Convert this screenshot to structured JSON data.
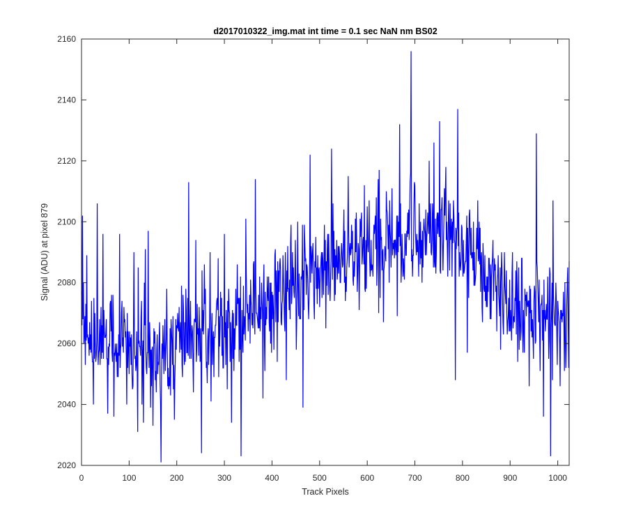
{
  "chart_data": {
    "type": "line",
    "title": "d2017010322_img.mat int time = 0.1 sec  NaN nm BS02",
    "xlabel": "Track Pixels",
    "ylabel": "Signal (ADU) at pixel 879",
    "xlim": [
      0,
      1024
    ],
    "ylim": [
      2020,
      2160
    ],
    "xticks": [
      0,
      100,
      200,
      300,
      400,
      500,
      600,
      700,
      800,
      900,
      1000
    ],
    "yticks": [
      2020,
      2040,
      2060,
      2080,
      2100,
      2120,
      2140,
      2160
    ],
    "grid": false,
    "series": [
      {
        "color": "#0000ff",
        "trend": {
          "x": [
            0,
            50,
            100,
            150,
            200,
            250,
            300,
            350,
            400,
            450,
            500,
            550,
            600,
            650,
            700,
            750,
            800,
            850,
            900,
            950,
            1000,
            1024
          ],
          "y": [
            2066,
            2062,
            2058,
            2056,
            2060,
            2063,
            2066,
            2072,
            2076,
            2079,
            2083,
            2087,
            2090,
            2093,
            2096,
            2095,
            2089,
            2082,
            2075,
            2069,
            2068,
            2069
          ]
        },
        "noise_amplitude": 14,
        "samples": 1024,
        "points": [
          {
            "x": 0,
            "y": 2077
          },
          {
            "x": 2,
            "y": 2102
          },
          {
            "x": 5,
            "y": 2060
          },
          {
            "x": 8,
            "y": 2053
          },
          {
            "x": 11,
            "y": 2089
          },
          {
            "x": 25,
            "y": 2040
          },
          {
            "x": 33,
            "y": 2106
          },
          {
            "x": 45,
            "y": 2096
          },
          {
            "x": 55,
            "y": 2037
          },
          {
            "x": 68,
            "y": 2036
          },
          {
            "x": 80,
            "y": 2096
          },
          {
            "x": 95,
            "y": 2040
          },
          {
            "x": 110,
            "y": 2090
          },
          {
            "x": 118,
            "y": 2031
          },
          {
            "x": 130,
            "y": 2034
          },
          {
            "x": 134,
            "y": 2091
          },
          {
            "x": 140,
            "y": 2097
          },
          {
            "x": 150,
            "y": 2033
          },
          {
            "x": 167,
            "y": 2021
          },
          {
            "x": 178,
            "y": 2062
          },
          {
            "x": 195,
            "y": 2035
          },
          {
            "x": 210,
            "y": 2079
          },
          {
            "x": 225,
            "y": 2113
          },
          {
            "x": 240,
            "y": 2094
          },
          {
            "x": 252,
            "y": 2024
          },
          {
            "x": 270,
            "y": 2090
          },
          {
            "x": 300,
            "y": 2096
          },
          {
            "x": 315,
            "y": 2034
          },
          {
            "x": 335,
            "y": 2023
          },
          {
            "x": 345,
            "y": 2101
          },
          {
            "x": 365,
            "y": 2114
          },
          {
            "x": 385,
            "y": 2051
          },
          {
            "x": 410,
            "y": 2079
          },
          {
            "x": 440,
            "y": 2099
          },
          {
            "x": 465,
            "y": 2039
          },
          {
            "x": 480,
            "y": 2122
          },
          {
            "x": 500,
            "y": 2072
          },
          {
            "x": 525,
            "y": 2124
          },
          {
            "x": 560,
            "y": 2115
          },
          {
            "x": 575,
            "y": 2101
          },
          {
            "x": 600,
            "y": 2105
          },
          {
            "x": 625,
            "y": 2117
          },
          {
            "x": 640,
            "y": 2110
          },
          {
            "x": 668,
            "y": 2132
          },
          {
            "x": 692,
            "y": 2156
          },
          {
            "x": 700,
            "y": 2112
          },
          {
            "x": 715,
            "y": 2080
          },
          {
            "x": 740,
            "y": 2126
          },
          {
            "x": 752,
            "y": 2133
          },
          {
            "x": 765,
            "y": 2118
          },
          {
            "x": 785,
            "y": 2048
          },
          {
            "x": 790,
            "y": 2137
          },
          {
            "x": 810,
            "y": 2057
          },
          {
            "x": 840,
            "y": 2090
          },
          {
            "x": 880,
            "y": 2058
          },
          {
            "x": 925,
            "y": 2088
          },
          {
            "x": 940,
            "y": 2046
          },
          {
            "x": 955,
            "y": 2129
          },
          {
            "x": 970,
            "y": 2036
          },
          {
            "x": 985,
            "y": 2023
          },
          {
            "x": 990,
            "y": 2107
          },
          {
            "x": 1010,
            "y": 2070
          },
          {
            "x": 1020,
            "y": 2080
          },
          {
            "x": 1024,
            "y": 2087
          }
        ]
      }
    ]
  }
}
